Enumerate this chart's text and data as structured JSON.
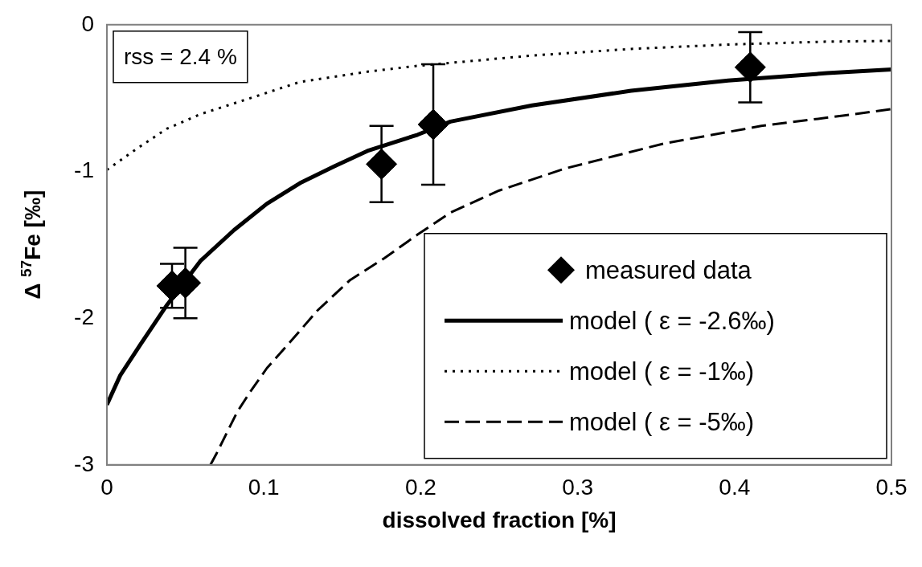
{
  "chart_data": {
    "type": "line",
    "xlabel": "dissolved fraction [%]",
    "ylabel": "Δ $^{57}$Fe [‰]",
    "xlim": [
      0,
      0.5
    ],
    "xticks": [
      0,
      0.1,
      0.2,
      0.3,
      0.4,
      0.5
    ],
    "ylim": [
      -3,
      0
    ],
    "yticks": [
      0,
      -1,
      -2,
      -3
    ],
    "grid": false,
    "legend": "bottom right",
    "annotations": [
      "rss = 2.4 %"
    ],
    "series": [
      {
        "name": "measured data",
        "type": "scatter",
        "marker": "diamond",
        "color": "#000000",
        "x": [
          0.0415,
          0.05,
          0.175,
          0.208,
          0.41
        ],
        "values": [
          -1.78,
          -1.76,
          -0.95,
          -0.68,
          -0.29
        ],
        "errors": [
          0.15,
          0.24,
          0.26,
          0.41,
          0.24
        ]
      },
      {
        "name": "model ( ε = -2.6‰)",
        "marker": "none",
        "line_style": "solid",
        "color": "#000000",
        "x": [
          0,
          0.0085,
          0.0213,
          0.0383,
          0.0596,
          0.081,
          0.102,
          0.123,
          0.145,
          0.166,
          0.198,
          0.219,
          0.271,
          0.334,
          0.396,
          0.459,
          0.5
        ],
        "values": [
          -2.59,
          -2.39,
          -2.18,
          -1.91,
          -1.61,
          -1.4,
          -1.22,
          -1.08,
          -0.965,
          -0.86,
          -0.75,
          -0.66,
          -0.55,
          -0.45,
          -0.38,
          -0.33,
          -0.305
        ]
      },
      {
        "name": "model ( ε = -1‰)",
        "marker": "none",
        "line_style": "dotted",
        "color": "#000000",
        "x": [
          0,
          0.017,
          0.038,
          0.0595,
          0.0915,
          0.123,
          0.166,
          0.198,
          0.271,
          0.334,
          0.396,
          0.459,
          0.5
        ],
        "values": [
          -0.99,
          -0.86,
          -0.71,
          -0.61,
          -0.5,
          -0.39,
          -0.32,
          -0.28,
          -0.21,
          -0.165,
          -0.135,
          -0.115,
          -0.11
        ]
      },
      {
        "name": "model ( ε = -5‰)",
        "marker": "none",
        "line_style": "dashed",
        "color": "#000000",
        "x": [
          0.066,
          0.07,
          0.083,
          0.0915,
          0.102,
          0.117,
          0.134,
          0.155,
          0.177,
          0.198,
          0.219,
          0.25,
          0.292,
          0.355,
          0.417,
          0.469,
          0.5
        ],
        "values": [
          -3.0,
          -2.92,
          -2.64,
          -2.5,
          -2.34,
          -2.16,
          -1.95,
          -1.74,
          -1.59,
          -1.43,
          -1.28,
          -1.13,
          -0.98,
          -0.81,
          -0.69,
          -0.62,
          -0.575
        ]
      }
    ]
  }
}
